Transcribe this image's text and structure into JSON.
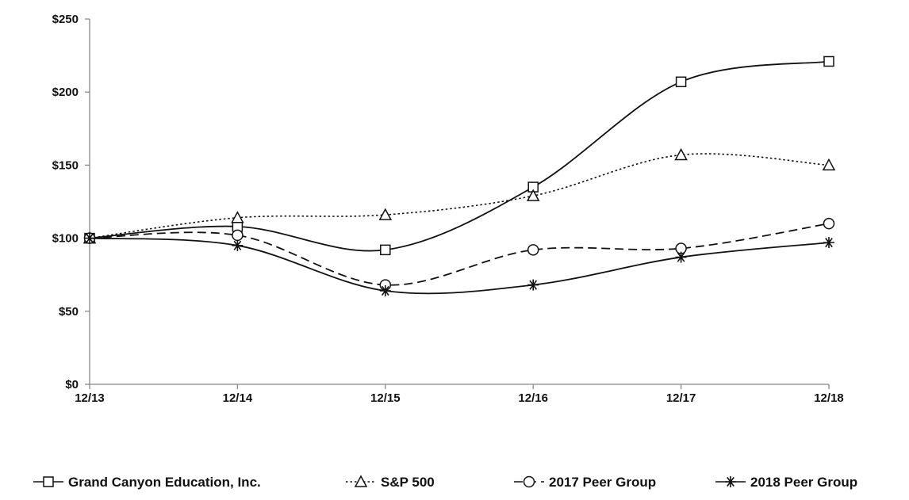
{
  "chart_data": {
    "type": "line",
    "x": [
      "12/13",
      "12/14",
      "12/15",
      "12/16",
      "12/17",
      "12/18"
    ],
    "y_ticks": [
      "$0",
      "$50",
      "$100",
      "$150",
      "$200",
      "$250"
    ],
    "ylim": [
      0,
      250
    ],
    "grid": false,
    "legend_position": "bottom",
    "series": [
      {
        "name": "Grand Canyon Education, Inc.",
        "values": [
          100,
          108,
          92,
          135,
          207,
          221
        ],
        "marker": "square",
        "dash": "solid"
      },
      {
        "name": "S&P 500",
        "values": [
          100,
          114,
          116,
          129,
          157,
          150
        ],
        "marker": "triangle",
        "dash": "dotted"
      },
      {
        "name": "2017 Peer Group",
        "values": [
          100,
          102,
          68,
          92,
          93,
          110
        ],
        "marker": "circle",
        "dash": "dashed"
      },
      {
        "name": "2018 Peer Group",
        "values": [
          100,
          95,
          64,
          68,
          87,
          97
        ],
        "marker": "star",
        "dash": "solid"
      }
    ]
  }
}
